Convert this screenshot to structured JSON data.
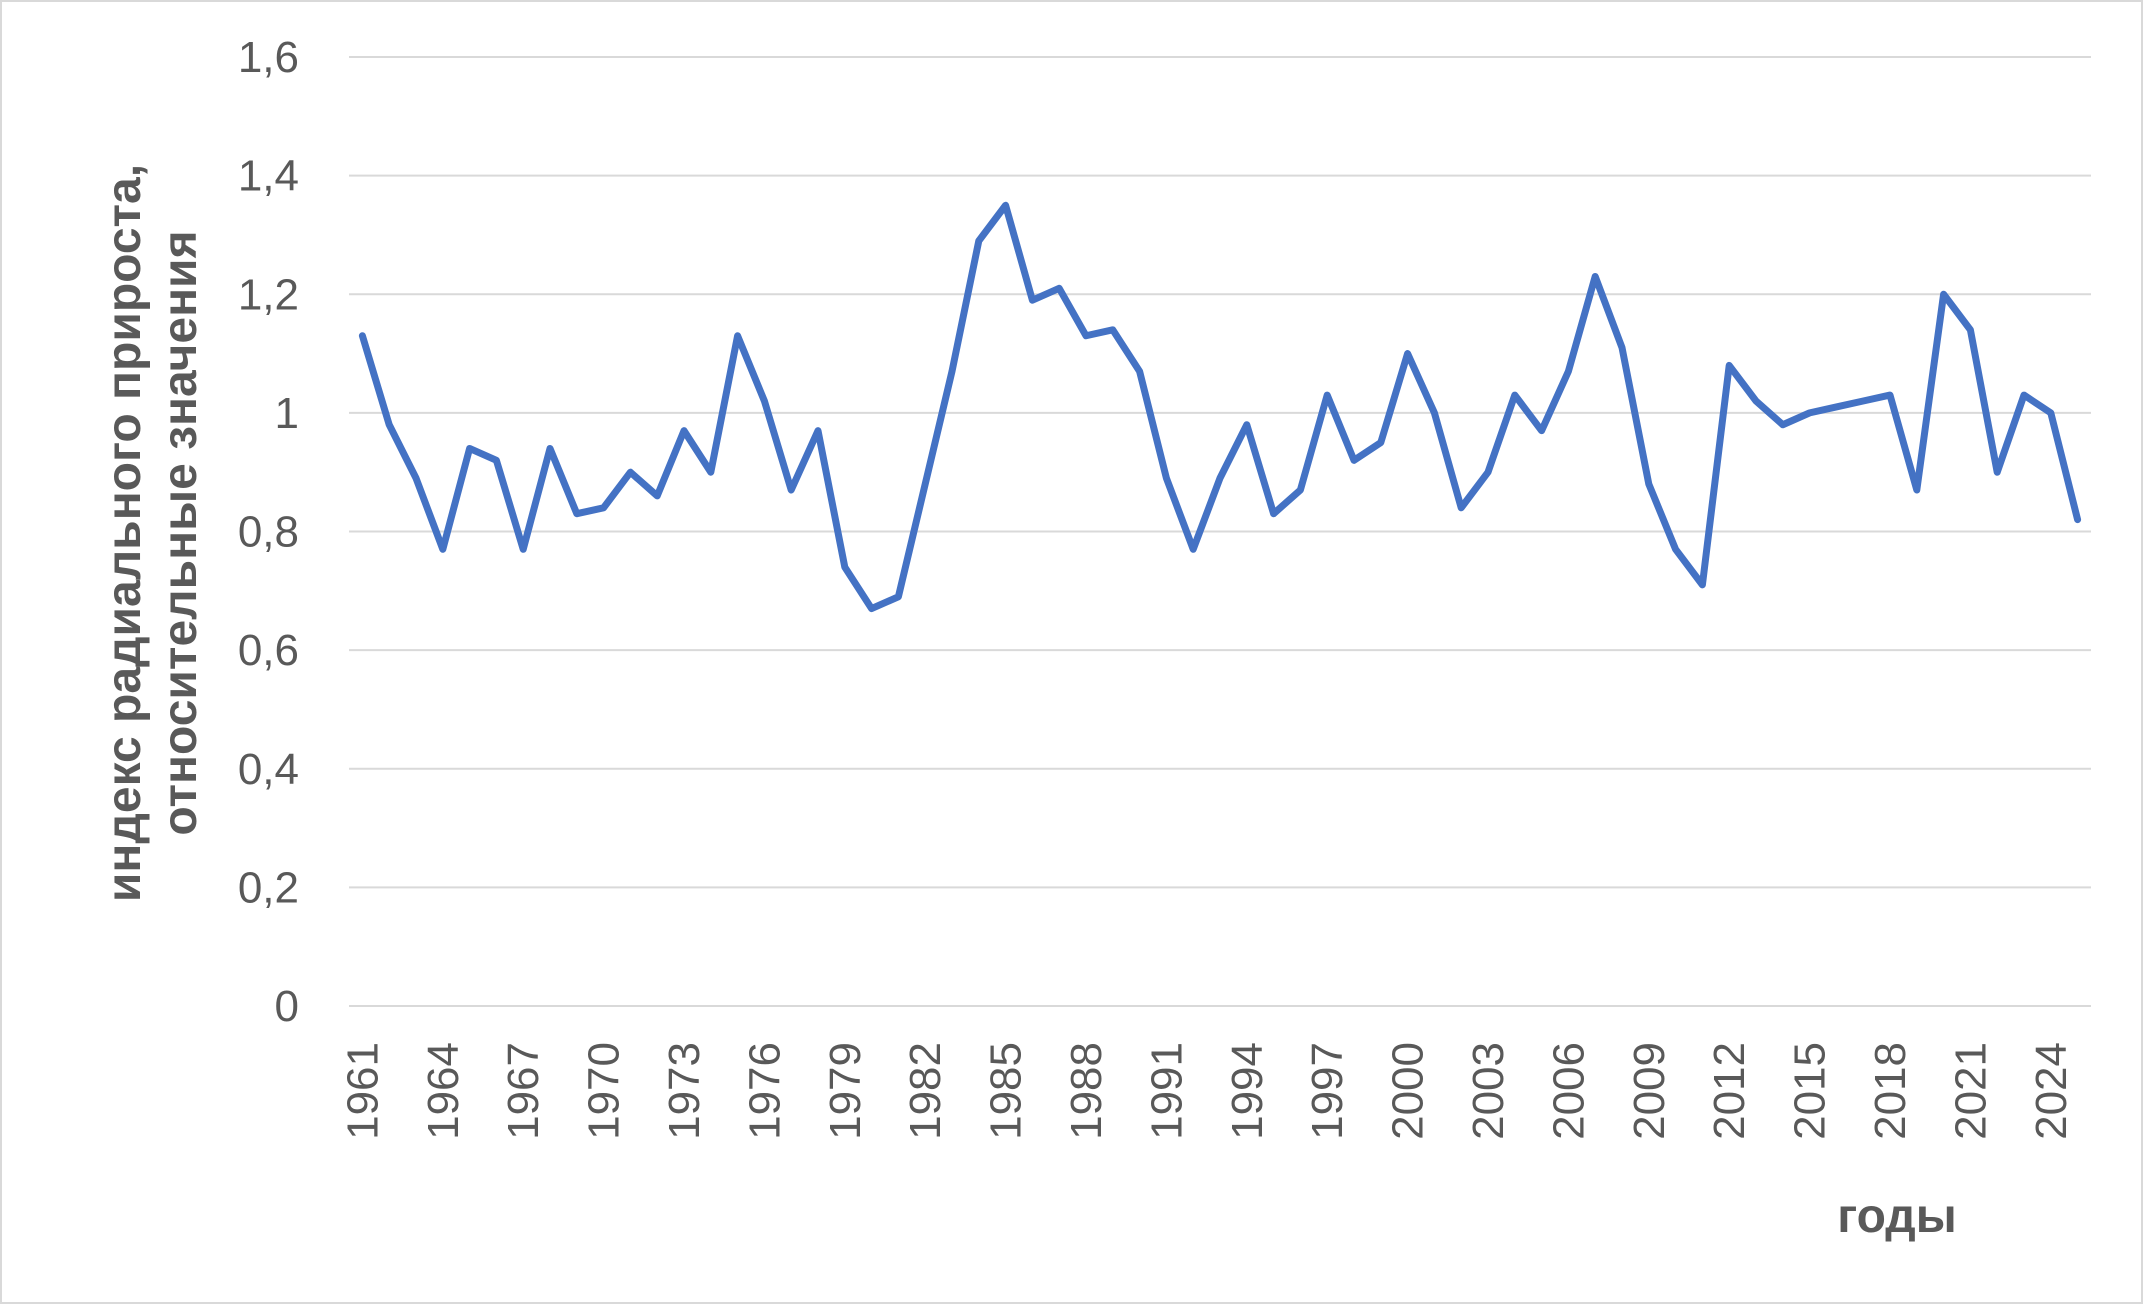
{
  "chart_data": {
    "type": "line",
    "ylabel": [
      "индекс радиального прироста,",
      "относительные значения"
    ],
    "xlabel": "годы",
    "categories": [
      "1961",
      null,
      null,
      "1964",
      null,
      null,
      "1967",
      null,
      null,
      "1970",
      null,
      null,
      "1973",
      null,
      null,
      "1976",
      null,
      null,
      "1979",
      null,
      null,
      "1982",
      null,
      null,
      "1985",
      null,
      null,
      "1988",
      null,
      null,
      "1991",
      null,
      null,
      "1994",
      null,
      null,
      "1997",
      null,
      null,
      "2000",
      null,
      null,
      "2003",
      null,
      null,
      "2006",
      null,
      null,
      "2009",
      null,
      null,
      "2012",
      null,
      null,
      "2015",
      null,
      null,
      "2018",
      null,
      null,
      "2021",
      null,
      null,
      "2024",
      null
    ],
    "series": [
      {
        "color": "#4472c4",
        "values": [
          1.13,
          0.98,
          0.89,
          0.77,
          0.94,
          0.92,
          0.77,
          0.94,
          0.83,
          0.84,
          0.9,
          0.86,
          0.97,
          0.9,
          1.13,
          1.02,
          0.87,
          0.97,
          0.74,
          0.67,
          0.69,
          0.88,
          1.07,
          1.29,
          1.35,
          1.19,
          1.21,
          1.13,
          1.14,
          1.07,
          0.89,
          0.77,
          0.89,
          0.98,
          0.83,
          0.87,
          1.03,
          0.92,
          0.95,
          1.1,
          1.0,
          0.84,
          0.9,
          1.03,
          0.97,
          1.07,
          1.23,
          1.11,
          0.88,
          0.77,
          0.71,
          1.08,
          1.02,
          0.98,
          1.0,
          1.01,
          1.02,
          1.03,
          0.87,
          1.2,
          1.14,
          0.9,
          1.03,
          1.0,
          0.82
        ]
      }
    ],
    "ylim": [
      0,
      1.6
    ],
    "yticks": [
      0,
      {
        "value": 0.2,
        "label": "0,2"
      },
      {
        "value": 0.4,
        "label": "0,4"
      },
      {
        "value": 0.6,
        "label": "0,6"
      },
      {
        "value": 0.8,
        "label": "0,8"
      },
      1,
      {
        "value": 1.2,
        "label": "1,2"
      },
      {
        "value": 1.4,
        "label": "1,4"
      },
      {
        "value": 1.6,
        "label": "1,6"
      }
    ],
    "grid": true
  }
}
